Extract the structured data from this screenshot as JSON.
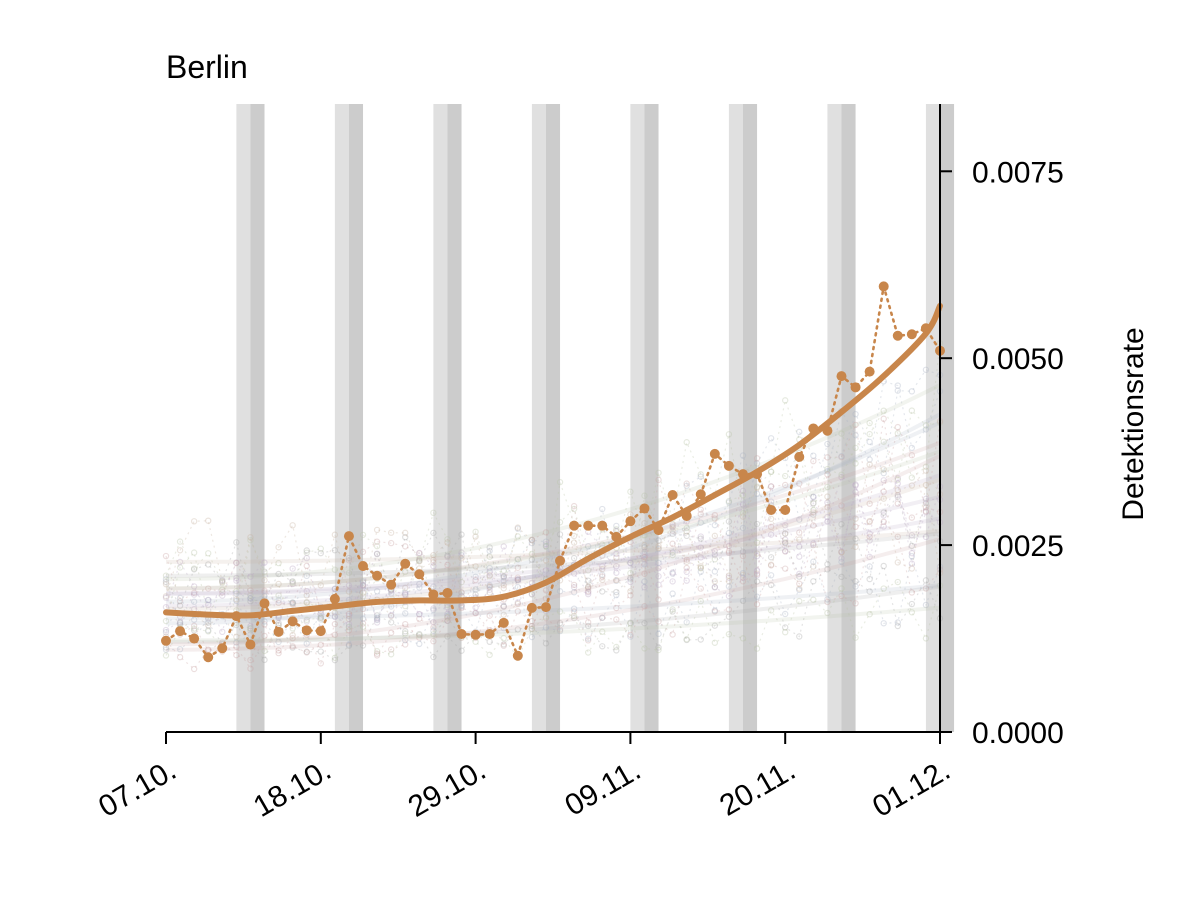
{
  "chart_data": {
    "type": "line",
    "title": "Berlin",
    "ylabel": "Detektionsrate",
    "y_axis_side": "right",
    "ylim": [
      0.0,
      0.0084
    ],
    "xlim": [
      "07.10.",
      "01.12."
    ],
    "x_tick_labels": [
      "07.10.",
      "18.10.",
      "29.10.",
      "09.11.",
      "20.11.",
      "01.12."
    ],
    "y_tick_labels": [
      "0.0000",
      "0.0025",
      "0.0050",
      "0.0075"
    ],
    "y_tick_values": [
      0.0,
      0.0025,
      0.005,
      0.0075
    ],
    "grid": false,
    "colors": {
      "highlight": "#c8864b",
      "weekend_light": "#e0e0e0",
      "weekend_dark": "#cccccc",
      "background_series": [
        "#b9a6c2",
        "#c9a3a3",
        "#a9b2c4",
        "#b8c4a6",
        "#c6b3a0",
        "#a7a7a7"
      ]
    },
    "weekend_shading": [
      [
        "12.10.",
        "13.10."
      ],
      [
        "19.10.",
        "20.10."
      ],
      [
        "26.10.",
        "27.10."
      ],
      [
        "02.11.",
        "03.11."
      ],
      [
        "09.11.",
        "10.11."
      ],
      [
        "16.11.",
        "17.11."
      ],
      [
        "23.11.",
        "24.11."
      ],
      [
        "30.11.",
        "01.12."
      ]
    ],
    "series": [
      {
        "role": "observed",
        "style": "dotted-with-markers",
        "x": [
          "07.10.",
          "08.10.",
          "09.10.",
          "10.10.",
          "11.10.",
          "12.10.",
          "13.10.",
          "14.10.",
          "15.10.",
          "16.10.",
          "17.10.",
          "18.10.",
          "19.10.",
          "20.10.",
          "21.10.",
          "22.10.",
          "23.10.",
          "24.10.",
          "25.10.",
          "26.10.",
          "27.10.",
          "28.10.",
          "29.10.",
          "30.10.",
          "31.10.",
          "01.11.",
          "02.11.",
          "03.11.",
          "04.11.",
          "05.11.",
          "06.11.",
          "07.11.",
          "08.11.",
          "09.11.",
          "10.11.",
          "11.11.",
          "12.11.",
          "13.11.",
          "14.11.",
          "15.11.",
          "16.11.",
          "17.11.",
          "18.11.",
          "19.11.",
          "20.11.",
          "21.11.",
          "22.11.",
          "23.11.",
          "24.11.",
          "25.11.",
          "26.11.",
          "27.11.",
          "28.11.",
          "29.11.",
          "30.11.",
          "01.12."
        ],
        "y": [
          0.00122,
          0.00135,
          0.00125,
          0.001,
          0.00112,
          0.00155,
          0.00117,
          0.00172,
          0.00134,
          0.00148,
          0.00136,
          0.00135,
          0.00178,
          0.00262,
          0.00222,
          0.00209,
          0.00197,
          0.00225,
          0.00211,
          0.00184,
          0.00186,
          0.00131,
          0.0013,
          0.00131,
          0.00146,
          0.00102,
          0.00166,
          0.00167,
          0.00229,
          0.00276,
          0.00276,
          0.00276,
          0.00261,
          0.00282,
          0.00299,
          0.0027,
          0.00317,
          0.00289,
          0.00318,
          0.00372,
          0.00356,
          0.00345,
          0.00345,
          0.00297,
          0.00297,
          0.00368,
          0.00406,
          0.00403,
          0.00476,
          0.00461,
          0.00482,
          0.00596,
          0.0053,
          0.00532,
          0.0054,
          0.0051
        ]
      },
      {
        "role": "smoothed",
        "style": "solid",
        "x": [
          "07.10.",
          "10.10.",
          "13.10.",
          "16.10.",
          "19.10.",
          "22.10.",
          "25.10.",
          "28.10.",
          "31.10.",
          "03.11.",
          "06.11.",
          "09.11.",
          "12.11.",
          "15.11.",
          "18.11.",
          "21.11.",
          "24.11.",
          "27.11.",
          "30.11.",
          "01.12."
        ],
        "y": [
          0.0016,
          0.00157,
          0.00156,
          0.00162,
          0.00168,
          0.00174,
          0.00176,
          0.00176,
          0.00181,
          0.002,
          0.00232,
          0.00261,
          0.00287,
          0.00317,
          0.00348,
          0.00384,
          0.00428,
          0.00476,
          0.00533,
          0.0057
        ]
      }
    ]
  }
}
